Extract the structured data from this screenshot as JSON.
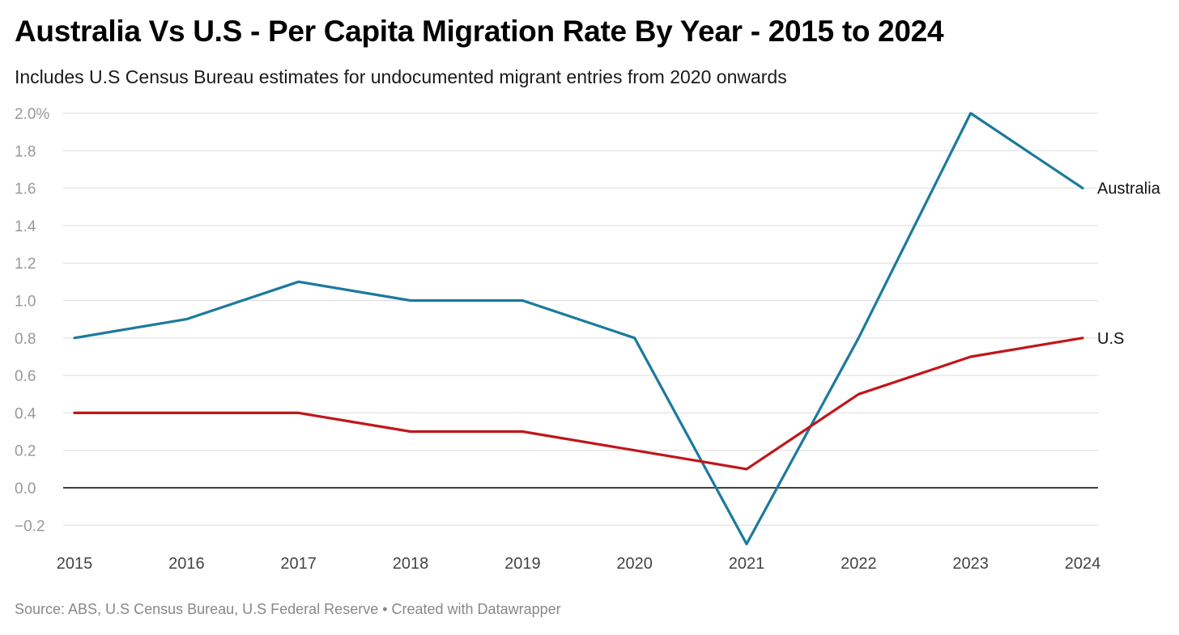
{
  "title": "Australia Vs U.S - Per Capita Migration Rate By Year - 2015 to 2024",
  "subtitle": "Includes U.S Census Bureau estimates for undocumented migrant entries from 2020 onwards",
  "source": "Source: ABS, U.S Census Bureau, U.S Federal Reserve • Created with Datawrapper",
  "chart_data": {
    "type": "line",
    "title": "Australia Vs U.S - Per Capita Migration Rate By Year - 2015 to 2024",
    "subtitle": "Includes U.S Census Bureau estimates for undocumented migrant entries from 2020 onwards",
    "x": [
      "2015",
      "2016",
      "2017",
      "2018",
      "2019",
      "2020",
      "2021",
      "2022",
      "2023",
      "2024"
    ],
    "ylim": [
      -0.3,
      2.0
    ],
    "yticks": [
      2.0,
      1.8,
      1.6,
      1.4,
      1.2,
      1.0,
      0.8,
      0.6,
      0.4,
      0.2,
      0.0,
      -0.2
    ],
    "ytick_labels": [
      "2.0%",
      "1.8",
      "1.6",
      "1.4",
      "1.2",
      "1.0",
      "0.8",
      "0.6",
      "0.4",
      "0.2",
      "0.0",
      "−0.2"
    ],
    "grid": true,
    "legend": "inline labels at line ends",
    "series": [
      {
        "name": "Australia",
        "color": "#1b7a9c",
        "values": [
          0.8,
          0.9,
          1.1,
          1.0,
          1.0,
          0.8,
          -0.3,
          0.8,
          2.0,
          1.6
        ]
      },
      {
        "name": "U.S",
        "color": "#c0171b",
        "values": [
          0.4,
          0.4,
          0.4,
          0.3,
          0.3,
          0.2,
          0.1,
          0.5,
          0.7,
          0.8
        ]
      }
    ]
  }
}
